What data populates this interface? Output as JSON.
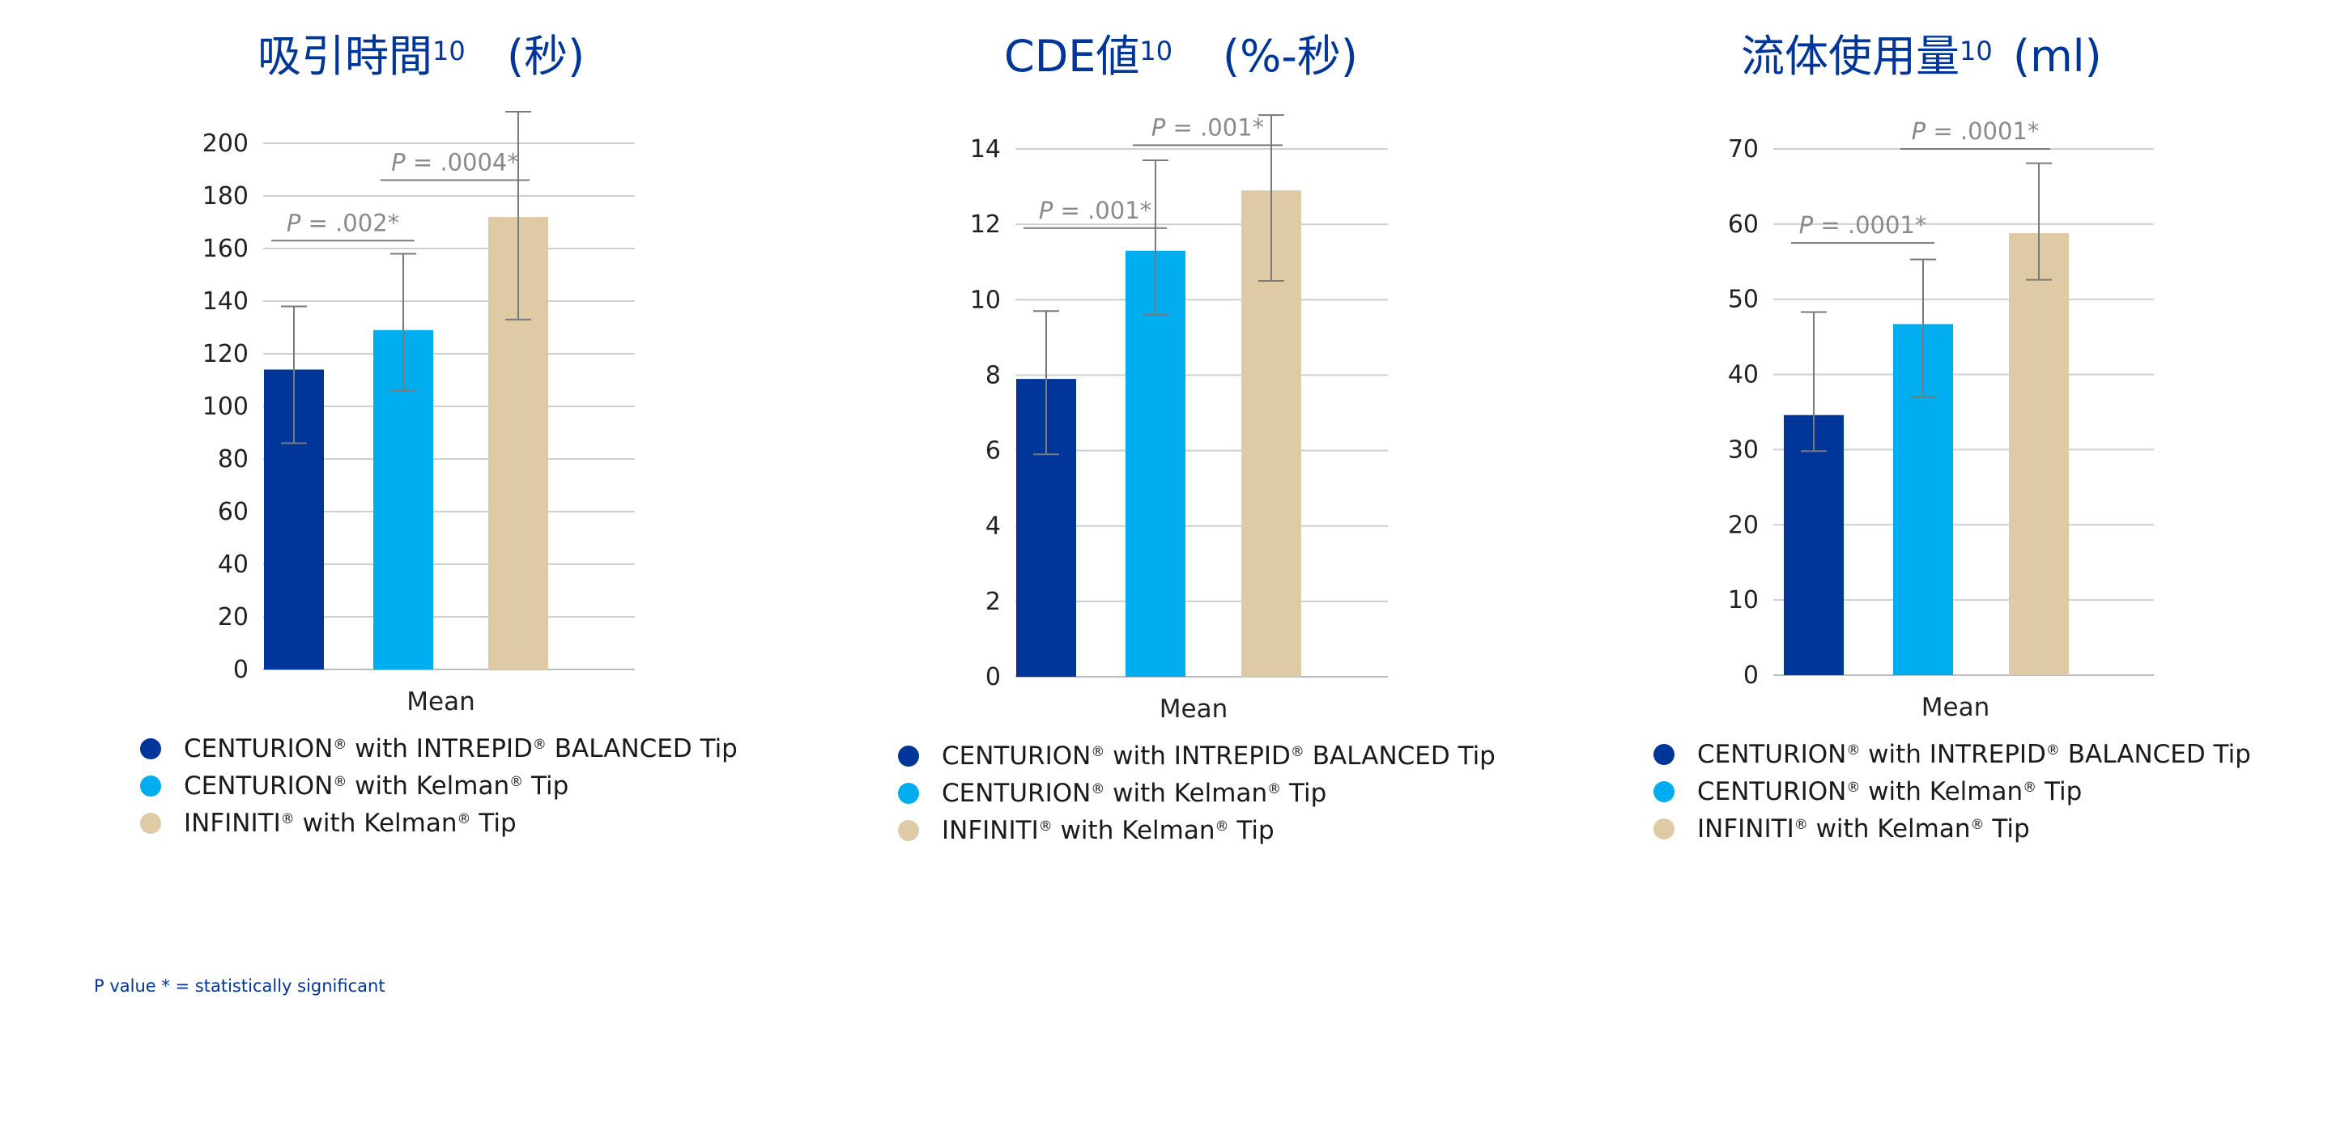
{
  "colors": {
    "centurion_intrepid": "#00359a",
    "centurion_kelman": "#00aeef",
    "infiniti_kelman": "#dfcaa6",
    "title": "#00359a"
  },
  "footnote": "P value * = statistically significant",
  "chart_data": [
    {
      "type": "bar",
      "title": "吸引時間",
      "title_superscript": "10",
      "unit": "(秒)",
      "categories": [
        "Mean"
      ],
      "yticks": [
        0,
        20,
        40,
        60,
        80,
        100,
        120,
        140,
        160,
        180,
        200
      ],
      "ylim": [
        0,
        200
      ],
      "grid": true,
      "legend_position": "bottom-left",
      "series": [
        {
          "name": "CENTURION® with INTREPID® BALANCED Tip",
          "values": [
            114
          ],
          "error_low": [
            86
          ],
          "error_high": [
            138
          ]
        },
        {
          "name": "CENTURION® with Kelman® Tip",
          "values": [
            129
          ],
          "error_low": [
            106
          ],
          "error_high": [
            158
          ]
        },
        {
          "name": "INFINITI® with Kelman® Tip",
          "values": [
            172
          ],
          "error_low": [
            133
          ],
          "error_high": [
            212
          ]
        }
      ],
      "annotations": [
        {
          "p_label": "P",
          "p_value": " = .002*",
          "from": 0,
          "to": 1,
          "level": 163
        },
        {
          "p_label": "P",
          "p_value": " = .0004*",
          "from": 1,
          "to": 2,
          "level": 186
        }
      ]
    },
    {
      "type": "bar",
      "title": "CDE値",
      "title_superscript": "10",
      "unit": "(%-秒)",
      "categories": [
        "Mean"
      ],
      "yticks": [
        0,
        2,
        4,
        6,
        8,
        10,
        12,
        14
      ],
      "ylim": [
        0,
        14
      ],
      "grid": true,
      "legend_position": "bottom-left",
      "series": [
        {
          "name": "CENTURION® with INTREPID® BALANCED Tip",
          "values": [
            7.9
          ],
          "error_low": [
            5.9
          ],
          "error_high": [
            9.7
          ]
        },
        {
          "name": "CENTURION® with Kelman® Tip",
          "values": [
            11.3
          ],
          "error_low": [
            9.6
          ],
          "error_high": [
            13.7
          ]
        },
        {
          "name": "INFINITI® with Kelman® Tip",
          "values": [
            12.9
          ],
          "error_low": [
            10.5
          ],
          "error_high": [
            14.9
          ]
        }
      ],
      "annotations": [
        {
          "p_label": "P",
          "p_value": " = .001*",
          "from": 0,
          "to": 1,
          "level": 11.9
        },
        {
          "p_label": "P",
          "p_value": " = .001*",
          "from": 1,
          "to": 2,
          "level": 14.1
        }
      ]
    },
    {
      "type": "bar",
      "title": "流体使用量",
      "title_superscript": "10",
      "unit": "(ml)",
      "categories": [
        "Mean"
      ],
      "yticks": [
        0,
        10,
        20,
        30,
        40,
        50,
        60,
        70
      ],
      "ylim": [
        0,
        70
      ],
      "grid": true,
      "legend_position": "bottom-left",
      "series": [
        {
          "name": "CENTURION® with INTREPID® BALANCED Tip",
          "values": [
            34.6
          ],
          "error_low": [
            29.8
          ],
          "error_high": [
            48.3
          ]
        },
        {
          "name": "CENTURION® with Kelman® Tip",
          "values": [
            46.7
          ],
          "error_low": [
            37
          ],
          "error_high": [
            55.3
          ]
        },
        {
          "name": "INFINITI® with Kelman® Tip",
          "values": [
            58.8
          ],
          "error_low": [
            52.6
          ],
          "error_high": [
            68.1
          ]
        }
      ],
      "annotations": [
        {
          "p_label": "P",
          "p_value": " = .0001*",
          "from": 0,
          "to": 1,
          "level": 57.5
        },
        {
          "p_label": "P",
          "p_value": " = .0001*",
          "from": 1,
          "to": 2,
          "level": 70
        }
      ]
    }
  ]
}
